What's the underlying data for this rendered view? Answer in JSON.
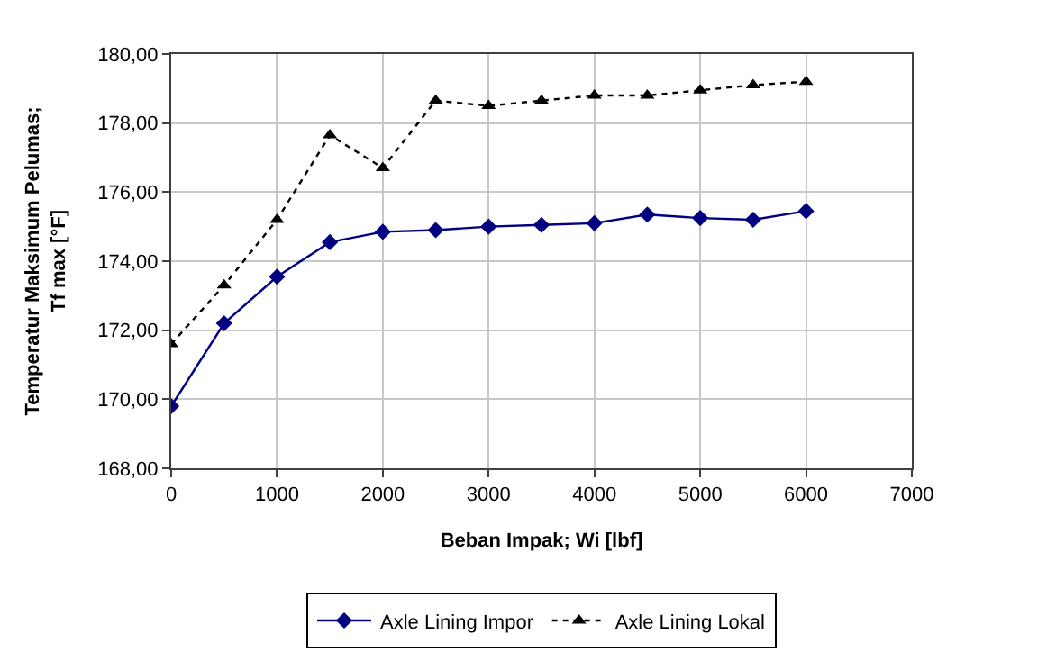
{
  "chart_data": {
    "type": "line",
    "xlabel": "Beban Impak; Wi [lbf]",
    "ylabel": "Temperatur Maksimum Pelumas;\nTf max [°F]",
    "x": [
      0,
      500,
      1000,
      1500,
      2000,
      2500,
      3000,
      3500,
      4000,
      4500,
      5000,
      5500,
      6000
    ],
    "series": [
      {
        "name": "Axle Lining Impor",
        "color": "#000080",
        "marker": "diamond",
        "line_style": "solid",
        "values": [
          169.8,
          172.2,
          173.55,
          174.55,
          174.85,
          174.9,
          175.0,
          175.05,
          175.1,
          175.35,
          175.25,
          175.2,
          175.45
        ]
      },
      {
        "name": "Axle Lining Lokal",
        "color": "#000000",
        "marker": "triangle",
        "line_style": "dotted",
        "values": [
          171.6,
          173.3,
          175.2,
          177.65,
          176.7,
          178.65,
          178.5,
          178.65,
          178.8,
          178.8,
          178.95,
          179.1,
          179.2
        ]
      }
    ],
    "xlim": [
      0,
      7000
    ],
    "xticks": [
      0,
      1000,
      2000,
      3000,
      4000,
      5000,
      6000,
      7000
    ],
    "ylim": [
      168,
      180
    ],
    "yticks": [
      {
        "value": 168,
        "label": "168,00"
      },
      {
        "value": 170,
        "label": "170,00"
      },
      {
        "value": 172,
        "label": "172,00"
      },
      {
        "value": 174,
        "label": "174,00"
      },
      {
        "value": 176,
        "label": "176,00"
      },
      {
        "value": 178,
        "label": "178,00"
      },
      {
        "value": 180,
        "label": "180,00"
      }
    ],
    "grid": true,
    "legend": "bottom"
  }
}
